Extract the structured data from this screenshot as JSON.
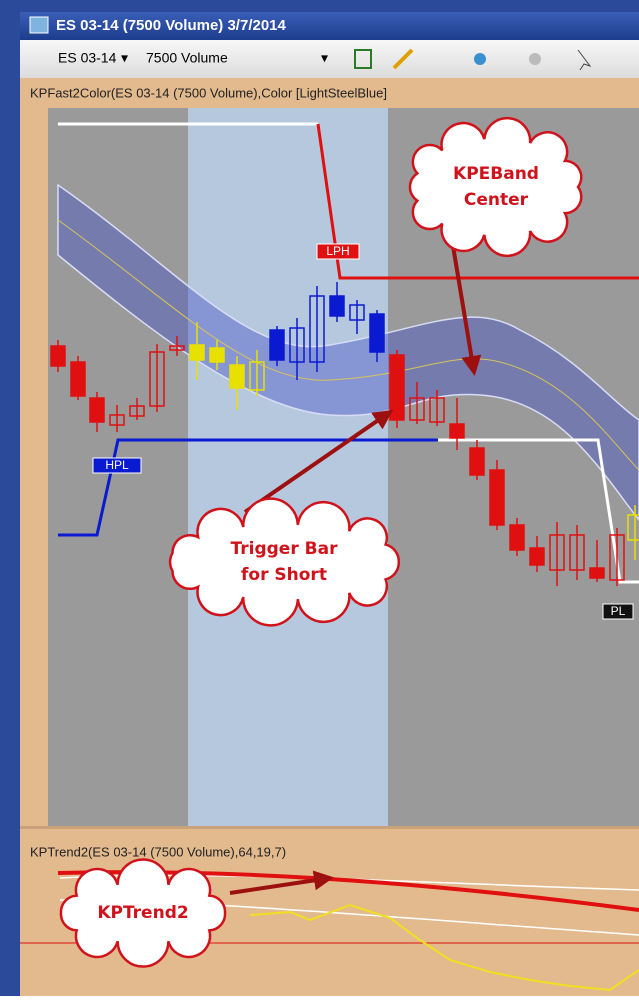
{
  "window": {
    "title": "ES 03-14 (7500 Volume)  3/7/2014"
  },
  "toolbar": {
    "instrument": "ES 03-14",
    "bar_type": "7500 Volume"
  },
  "panels": [
    {
      "label": "KPFast2Color(ES 03-14 (7500 Volume),Color [LightSteelBlue]"
    },
    {
      "label": "KPTrend2(ES 03-14 (7500 Volume),64,19,7)"
    }
  ],
  "markers": [
    {
      "label": "LPH"
    },
    {
      "label": "HPL"
    },
    {
      "label": "PL"
    }
  ],
  "callouts": [
    {
      "lines": [
        "KPEBand",
        "Center"
      ]
    },
    {
      "lines": [
        "Trigger Bar",
        "for Short"
      ]
    },
    {
      "lines": [
        "KPTrend2"
      ]
    }
  ]
}
